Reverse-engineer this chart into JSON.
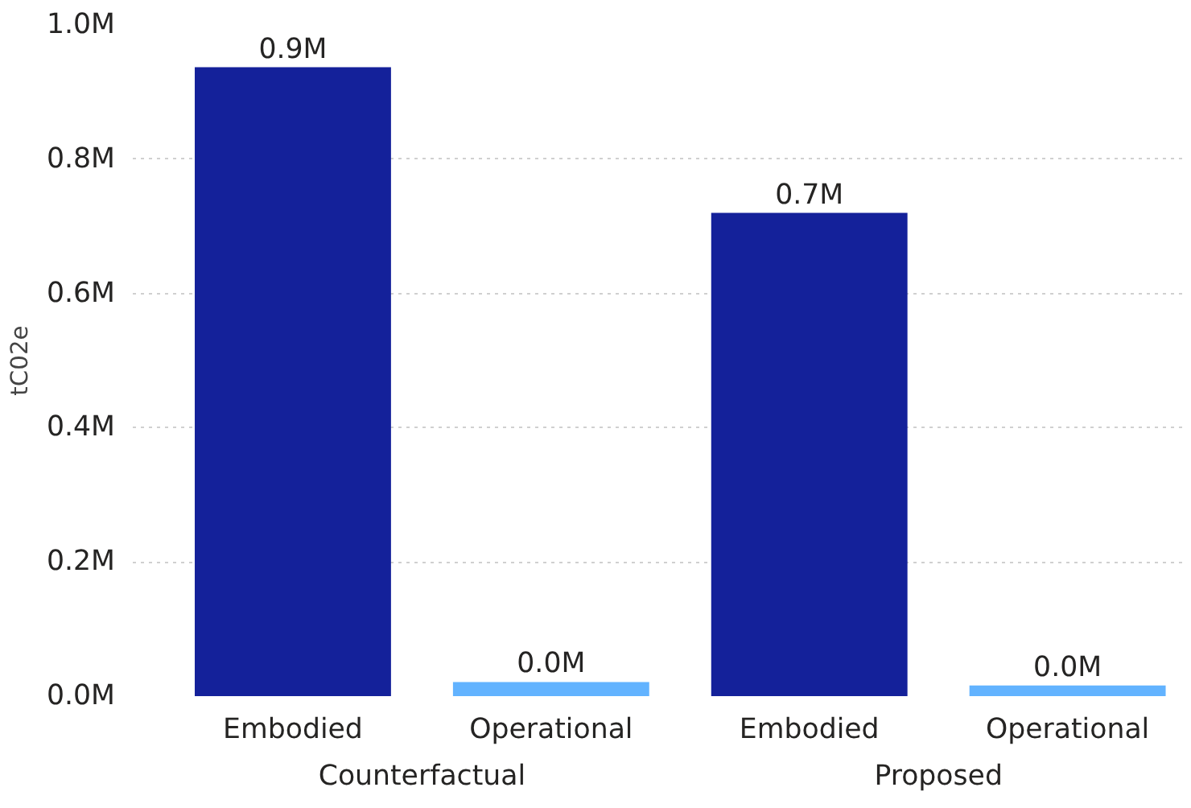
{
  "chart_data": {
    "type": "bar",
    "ylabel": "tC02e",
    "categories": [
      "Embodied",
      "Operational",
      "Embodied",
      "Operational"
    ],
    "values": [
      0.937,
      0.021,
      0.72,
      0.016
    ],
    "colors": [
      "#14219a",
      "#62b3ff",
      "#14219a",
      "#62b3ff"
    ],
    "value_labels": [
      "0.9M",
      "0.0M",
      "0.7M",
      "0.0M"
    ],
    "ylim": [
      0,
      1.0
    ],
    "yticks": [
      {
        "value": 0,
        "label": "0.0M"
      },
      {
        "value": 0.2,
        "label": "0.2M"
      },
      {
        "value": 0.4,
        "label": "0.4M"
      },
      {
        "value": 0.6,
        "label": "0.6M"
      },
      {
        "value": 0.8,
        "label": "0.8M"
      },
      {
        "value": 1.0,
        "label": "1.0M"
      }
    ],
    "grid": "y",
    "annotations": [
      "Counterfactual",
      "Proposed"
    ]
  }
}
